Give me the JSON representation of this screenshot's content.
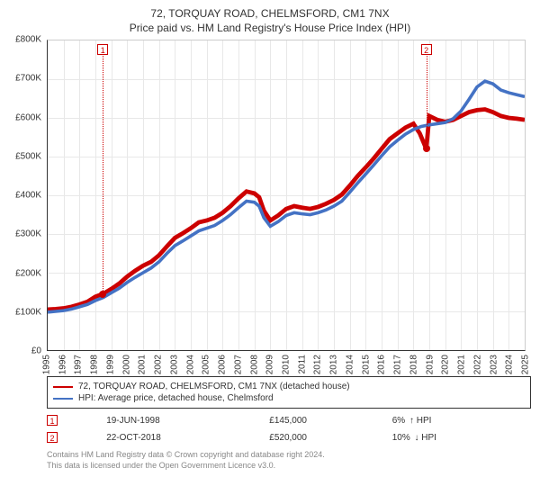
{
  "title": "72, TORQUAY ROAD, CHELMSFORD, CM1 7NX",
  "subtitle": "Price paid vs. HM Land Registry's House Price Index (HPI)",
  "chart": {
    "type": "line",
    "background_color": "#ffffff",
    "grid_color": "#e8e8e8",
    "axis_color": "#333333",
    "y": {
      "min": 0,
      "max": 800000,
      "tick_step": 100000,
      "ticks": [
        "£0",
        "£100K",
        "£200K",
        "£300K",
        "£400K",
        "£500K",
        "£600K",
        "£700K",
        "£800K"
      ],
      "label_fontsize": 10
    },
    "x": {
      "years": [
        1995,
        1996,
        1997,
        1998,
        1999,
        2000,
        2001,
        2002,
        2003,
        2004,
        2005,
        2006,
        2007,
        2008,
        2009,
        2010,
        2011,
        2012,
        2013,
        2014,
        2015,
        2016,
        2017,
        2018,
        2019,
        2020,
        2021,
        2022,
        2023,
        2024,
        2025
      ],
      "label_fontsize": 10
    },
    "series": [
      {
        "id": "property",
        "label": "72, TORQUAY ROAD, CHELMSFORD, CM1 7NX (detached house)",
        "color": "#cc0000",
        "line_width": 1.6,
        "points": [
          [
            1995.0,
            105000
          ],
          [
            1995.5,
            106000
          ],
          [
            1996.0,
            108000
          ],
          [
            1996.5,
            112000
          ],
          [
            1997.0,
            118000
          ],
          [
            1997.5,
            125000
          ],
          [
            1998.0,
            138000
          ],
          [
            1998.47,
            145000
          ],
          [
            1999.0,
            158000
          ],
          [
            1999.5,
            172000
          ],
          [
            2000.0,
            190000
          ],
          [
            2000.5,
            205000
          ],
          [
            2001.0,
            218000
          ],
          [
            2001.5,
            228000
          ],
          [
            2002.0,
            245000
          ],
          [
            2002.5,
            268000
          ],
          [
            2003.0,
            290000
          ],
          [
            2003.5,
            302000
          ],
          [
            2004.0,
            315000
          ],
          [
            2004.5,
            330000
          ],
          [
            2005.0,
            335000
          ],
          [
            2005.5,
            342000
          ],
          [
            2006.0,
            355000
          ],
          [
            2006.5,
            372000
          ],
          [
            2007.0,
            392000
          ],
          [
            2007.5,
            410000
          ],
          [
            2008.0,
            405000
          ],
          [
            2008.3,
            395000
          ],
          [
            2008.6,
            360000
          ],
          [
            2009.0,
            335000
          ],
          [
            2009.5,
            348000
          ],
          [
            2010.0,
            365000
          ],
          [
            2010.5,
            372000
          ],
          [
            2011.0,
            368000
          ],
          [
            2011.5,
            365000
          ],
          [
            2012.0,
            370000
          ],
          [
            2012.5,
            378000
          ],
          [
            2013.0,
            388000
          ],
          [
            2013.5,
            402000
          ],
          [
            2014.0,
            425000
          ],
          [
            2014.5,
            450000
          ],
          [
            2015.0,
            472000
          ],
          [
            2015.5,
            495000
          ],
          [
            2016.0,
            520000
          ],
          [
            2016.5,
            545000
          ],
          [
            2017.0,
            560000
          ],
          [
            2017.5,
            575000
          ],
          [
            2018.0,
            585000
          ],
          [
            2018.4,
            560000
          ],
          [
            2018.81,
            520000
          ],
          [
            2019.0,
            605000
          ],
          [
            2019.5,
            595000
          ],
          [
            2020.0,
            590000
          ],
          [
            2020.5,
            595000
          ],
          [
            2021.0,
            605000
          ],
          [
            2021.5,
            615000
          ],
          [
            2022.0,
            620000
          ],
          [
            2022.5,
            622000
          ],
          [
            2023.0,
            615000
          ],
          [
            2023.5,
            605000
          ],
          [
            2024.0,
            600000
          ],
          [
            2024.5,
            598000
          ],
          [
            2025.0,
            595000
          ]
        ]
      },
      {
        "id": "hpi",
        "label": "HPI: Average price, detached house, Chelmsford",
        "color": "#4472c4",
        "line_width": 1.2,
        "points": [
          [
            1995.0,
            98000
          ],
          [
            1995.5,
            100000
          ],
          [
            1996.0,
            102000
          ],
          [
            1996.5,
            106000
          ],
          [
            1997.0,
            112000
          ],
          [
            1997.5,
            118000
          ],
          [
            1998.0,
            128000
          ],
          [
            1998.5,
            136000
          ],
          [
            1999.0,
            148000
          ],
          [
            1999.5,
            160000
          ],
          [
            2000.0,
            175000
          ],
          [
            2000.5,
            188000
          ],
          [
            2001.0,
            200000
          ],
          [
            2001.5,
            212000
          ],
          [
            2002.0,
            228000
          ],
          [
            2002.5,
            250000
          ],
          [
            2003.0,
            270000
          ],
          [
            2003.5,
            282000
          ],
          [
            2004.0,
            295000
          ],
          [
            2004.5,
            308000
          ],
          [
            2005.0,
            315000
          ],
          [
            2005.5,
            322000
          ],
          [
            2006.0,
            335000
          ],
          [
            2006.5,
            350000
          ],
          [
            2007.0,
            368000
          ],
          [
            2007.5,
            385000
          ],
          [
            2008.0,
            382000
          ],
          [
            2008.3,
            372000
          ],
          [
            2008.6,
            342000
          ],
          [
            2009.0,
            320000
          ],
          [
            2009.5,
            332000
          ],
          [
            2010.0,
            348000
          ],
          [
            2010.5,
            355000
          ],
          [
            2011.0,
            352000
          ],
          [
            2011.5,
            350000
          ],
          [
            2012.0,
            355000
          ],
          [
            2012.5,
            362000
          ],
          [
            2013.0,
            372000
          ],
          [
            2013.5,
            385000
          ],
          [
            2014.0,
            408000
          ],
          [
            2014.5,
            432000
          ],
          [
            2015.0,
            455000
          ],
          [
            2015.5,
            478000
          ],
          [
            2016.0,
            502000
          ],
          [
            2016.5,
            525000
          ],
          [
            2017.0,
            542000
          ],
          [
            2017.5,
            558000
          ],
          [
            2018.0,
            570000
          ],
          [
            2018.5,
            578000
          ],
          [
            2019.0,
            582000
          ],
          [
            2019.5,
            585000
          ],
          [
            2020.0,
            588000
          ],
          [
            2020.5,
            598000
          ],
          [
            2021.0,
            618000
          ],
          [
            2021.5,
            648000
          ],
          [
            2022.0,
            680000
          ],
          [
            2022.5,
            695000
          ],
          [
            2023.0,
            688000
          ],
          [
            2023.5,
            672000
          ],
          [
            2024.0,
            665000
          ],
          [
            2024.5,
            660000
          ],
          [
            2025.0,
            655000
          ]
        ]
      }
    ],
    "markers": [
      {
        "n": "1",
        "year": 1998.47,
        "price": 145000
      },
      {
        "n": "2",
        "year": 2018.81,
        "price": 520000
      }
    ]
  },
  "legend": {
    "border_color": "#333333",
    "fontsize": 10
  },
  "sales": {
    "hpi_label": "HPI",
    "rows": [
      {
        "n": "1",
        "date": "19-JUN-1998",
        "price": "£145,000",
        "delta": "6%",
        "arrow": "↑"
      },
      {
        "n": "2",
        "date": "22-OCT-2018",
        "price": "£520,000",
        "delta": "10%",
        "arrow": "↓"
      }
    ]
  },
  "footnote_line1": "Contains HM Land Registry data © Crown copyright and database right 2024.",
  "footnote_line2": "This data is licensed under the Open Government Licence v3.0."
}
